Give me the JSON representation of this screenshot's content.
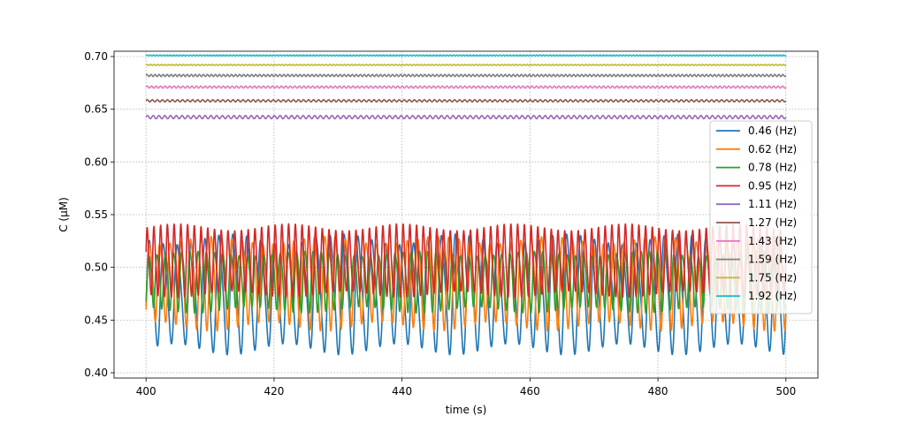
{
  "chart_data": {
    "type": "line",
    "xlabel": "time (s)",
    "ylabel": "C (μM)",
    "xlim": [
      395,
      505
    ],
    "ylim": [
      0.395,
      0.705
    ],
    "x_ticks": [
      400,
      420,
      440,
      460,
      480,
      500
    ],
    "y_ticks": [
      0.4,
      0.45,
      0.5,
      0.55,
      0.6,
      0.65,
      0.7
    ],
    "grid": true,
    "legend_position": "right",
    "x_range": [
      400,
      500
    ],
    "series": [
      {
        "name": "0.46 (Hz)",
        "color": "#1f77b4",
        "frequency_hz": 0.46,
        "min": 0.412,
        "max": 0.54,
        "first_value": 0.462
      },
      {
        "name": "0.62 (Hz)",
        "color": "#ff7f0e",
        "frequency_hz": 0.62,
        "min": 0.438,
        "max": 0.54,
        "first_value": 0.454
      },
      {
        "name": "0.78 (Hz)",
        "color": "#2ca02c",
        "frequency_hz": 0.78,
        "min": 0.456,
        "max": 0.523,
        "first_value": 0.463
      },
      {
        "name": "0.95 (Hz)",
        "color": "#d62728",
        "frequency_hz": 0.95,
        "min": 0.466,
        "max": 0.544,
        "first_value": 0.516
      },
      {
        "name": "1.11 (Hz)",
        "color": "#9467bd",
        "frequency_hz": 1.11,
        "min": 0.641,
        "max": 0.644
      },
      {
        "name": "1.27 (Hz)",
        "color": "#8c564b",
        "frequency_hz": 1.27,
        "min": 0.657,
        "max": 0.659
      },
      {
        "name": "1.43 (Hz)",
        "color": "#e377c2",
        "frequency_hz": 1.43,
        "min": 0.67,
        "max": 0.672
      },
      {
        "name": "1.59 (Hz)",
        "color": "#7f7f7f",
        "frequency_hz": 1.59,
        "min": 0.681,
        "max": 0.683
      },
      {
        "name": "1.75 (Hz)",
        "color": "#bcbd22",
        "frequency_hz": 1.75,
        "min": 0.6915,
        "max": 0.6925
      },
      {
        "name": "1.92 (Hz)",
        "color": "#17becf",
        "frequency_hz": 1.92,
        "min": 0.7005,
        "max": 0.7015
      }
    ]
  }
}
